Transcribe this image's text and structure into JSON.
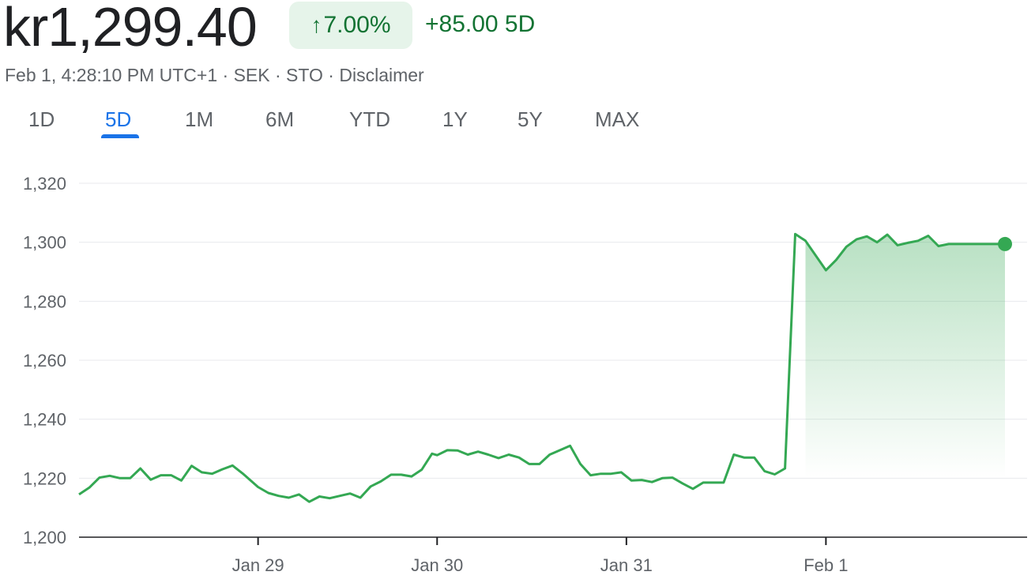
{
  "header": {
    "price": "kr1,299.40",
    "change_arrow": "↑",
    "change_percent": "7.00%",
    "change_abs": "+85.00 5D",
    "timestamp": "Feb 1, 4:28:10 PM UTC+1",
    "currency": "SEK",
    "exchange": "STO",
    "disclaimer": "Disclaimer",
    "separator": " · "
  },
  "colors": {
    "up": "#137333",
    "line": "#34a853",
    "accent": "#1a73e8"
  },
  "tabs": [
    {
      "label": "1D",
      "active": false
    },
    {
      "label": "5D",
      "active": true
    },
    {
      "label": "1M",
      "active": false
    },
    {
      "label": "6M",
      "active": false
    },
    {
      "label": "YTD",
      "active": false
    },
    {
      "label": "1Y",
      "active": false
    },
    {
      "label": "5Y",
      "active": false
    },
    {
      "label": "MAX",
      "active": false
    }
  ],
  "chart_data": {
    "type": "area",
    "ylim": [
      1200,
      1320
    ],
    "yticks": [
      "1,320",
      "1,300",
      "1,280",
      "1,260",
      "1,240",
      "1,220",
      "1,200"
    ],
    "ytick_values": [
      1320,
      1300,
      1280,
      1260,
      1240,
      1220,
      1200
    ],
    "xticks": [
      {
        "label": "Jan 29",
        "x": 3.5
      },
      {
        "label": "Jan 30",
        "x": 7.0
      },
      {
        "label": "Jan 31",
        "x": 10.7
      },
      {
        "label": "Feb 1",
        "x": 14.6
      }
    ],
    "xlim": [
      0,
      18.1
    ],
    "grid": true,
    "last_point_marker": true,
    "series": [
      {
        "x": [
          0,
          0.2,
          0.4,
          0.6,
          0.8,
          1.0,
          1.2,
          1.4,
          1.6,
          1.8,
          2.0,
          2.2,
          2.4,
          2.6,
          2.8,
          3.0,
          3.2,
          3.5,
          3.7,
          3.9,
          4.1,
          4.3,
          4.5,
          4.7,
          4.9,
          5.1,
          5.3,
          5.5,
          5.7,
          5.9,
          6.1,
          6.3,
          6.5,
          6.7,
          6.9,
          7.0,
          7.2,
          7.4,
          7.6,
          7.8,
          8.0,
          8.2,
          8.4,
          8.6,
          8.8,
          9.0,
          9.2,
          9.4,
          9.6,
          9.8,
          10.0,
          10.2,
          10.4,
          10.6,
          10.8,
          11.0,
          11.2,
          11.4,
          11.6,
          11.8,
          12.0,
          12.2,
          12.4,
          12.6,
          12.8,
          13.0,
          13.2,
          13.4,
          13.6,
          13.8,
          14.0,
          14.2,
          14.6,
          14.8,
          15.0,
          15.2,
          15.4,
          15.6,
          15.8,
          16.0,
          16.2,
          16.4,
          16.6,
          16.8,
          17.0,
          17.2,
          17.4,
          17.6,
          17.8,
          18.1
        ],
        "y": [
          1214.5,
          1216.8,
          1220.2,
          1220.8,
          1220,
          1220,
          1223.3,
          1219.5,
          1221,
          1221,
          1219.2,
          1224.2,
          1222,
          1221.5,
          1223,
          1224.3,
          1221.6,
          1217,
          1215,
          1214,
          1213.4,
          1214.5,
          1212,
          1213.8,
          1213.2,
          1214,
          1214.8,
          1213.4,
          1217.2,
          1218.9,
          1221.2,
          1221.2,
          1220.6,
          1222.9,
          1228.3,
          1227.8,
          1229.5,
          1229.4,
          1228,
          1229,
          1228,
          1226.8,
          1228,
          1227,
          1224.8,
          1224.8,
          1228,
          1229.5,
          1231,
          1224.8,
          1221,
          1221.5,
          1221.5,
          1222,
          1219.2,
          1219.4,
          1218.7,
          1220,
          1220.2,
          1218.2,
          1216.4,
          1218.5,
          1218.5,
          1218.5,
          1228,
          1227,
          1227,
          1222.4,
          1221.3,
          1223.3,
          1302.8,
          1300.5,
          1290.5,
          1294,
          1298.5,
          1301,
          1302,
          1300,
          1302.6,
          1299,
          1299.8,
          1300.5,
          1302.2,
          1298.7,
          1299.4,
          1299.4,
          1299.4,
          1299.4,
          1299.4,
          1299.4
        ],
        "color": "#34a853"
      }
    ]
  }
}
